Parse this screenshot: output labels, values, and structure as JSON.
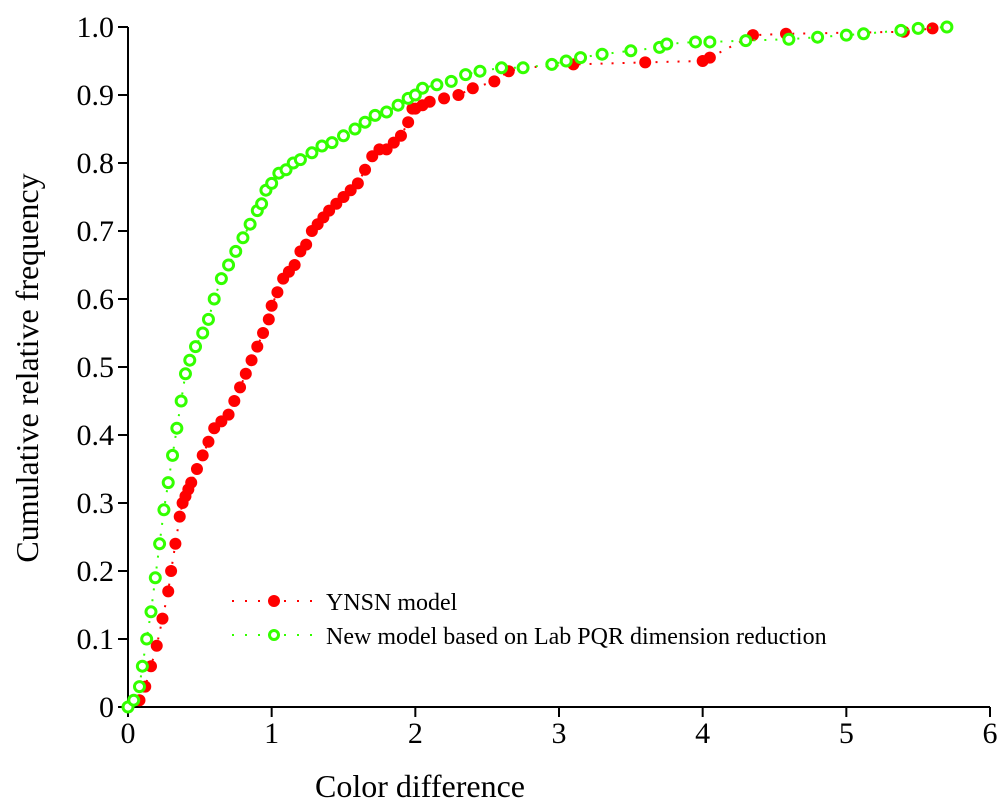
{
  "chart_data": {
    "type": "scatter",
    "title": "",
    "xlabel": "Color difference",
    "ylabel": "Cumulative relative frequency",
    "xlim": [
      0,
      6
    ],
    "ylim": [
      0,
      1.0
    ],
    "xticks": [
      "0",
      "1",
      "2",
      "3",
      "4",
      "5",
      "6"
    ],
    "yticks": [
      "0",
      "0.1",
      "0.2",
      "0.3",
      "0.4",
      "0.5",
      "0.6",
      "0.7",
      "0.8",
      "0.9",
      "1.0"
    ],
    "grid": false,
    "legend_position": "bottom-center",
    "series": [
      {
        "name": "YNSN model",
        "color": "#ff0000",
        "marker": "filled-circle",
        "line": "dotted",
        "x": [
          0.0,
          0.08,
          0.12,
          0.16,
          0.2,
          0.24,
          0.28,
          0.3,
          0.33,
          0.36,
          0.38,
          0.4,
          0.42,
          0.44,
          0.48,
          0.52,
          0.56,
          0.6,
          0.65,
          0.7,
          0.74,
          0.78,
          0.82,
          0.86,
          0.9,
          0.94,
          0.98,
          1.0,
          1.04,
          1.08,
          1.12,
          1.16,
          1.2,
          1.24,
          1.28,
          1.32,
          1.36,
          1.4,
          1.45,
          1.5,
          1.55,
          1.6,
          1.65,
          1.7,
          1.75,
          1.8,
          1.85,
          1.9,
          1.95,
          1.98,
          2.0,
          2.05,
          2.1,
          2.2,
          2.3,
          2.4,
          2.55,
          2.65,
          2.75,
          3.1,
          3.6,
          4.0,
          4.05,
          4.35,
          4.58,
          5.4,
          5.6
        ],
        "y": [
          0.0,
          0.01,
          0.03,
          0.06,
          0.09,
          0.13,
          0.17,
          0.2,
          0.24,
          0.28,
          0.3,
          0.31,
          0.32,
          0.33,
          0.35,
          0.37,
          0.39,
          0.41,
          0.42,
          0.43,
          0.45,
          0.47,
          0.49,
          0.51,
          0.53,
          0.55,
          0.57,
          0.59,
          0.61,
          0.63,
          0.64,
          0.65,
          0.67,
          0.68,
          0.7,
          0.71,
          0.72,
          0.73,
          0.74,
          0.75,
          0.76,
          0.77,
          0.79,
          0.81,
          0.82,
          0.82,
          0.83,
          0.84,
          0.86,
          0.88,
          0.88,
          0.885,
          0.89,
          0.895,
          0.9,
          0.91,
          0.92,
          0.935,
          0.94,
          0.945,
          0.948,
          0.95,
          0.955,
          0.988,
          0.99,
          0.993,
          0.998
        ]
      },
      {
        "name": "New model based on Lab PQR dimension reduction",
        "color": "#33ff00",
        "marker": "open-circle",
        "line": "dotted",
        "x": [
          0.0,
          0.04,
          0.08,
          0.1,
          0.13,
          0.16,
          0.19,
          0.22,
          0.25,
          0.28,
          0.31,
          0.34,
          0.37,
          0.4,
          0.43,
          0.47,
          0.52,
          0.56,
          0.6,
          0.65,
          0.7,
          0.75,
          0.8,
          0.85,
          0.9,
          0.93,
          0.96,
          1.0,
          1.05,
          1.1,
          1.15,
          1.2,
          1.28,
          1.35,
          1.42,
          1.5,
          1.58,
          1.65,
          1.72,
          1.8,
          1.88,
          1.95,
          2.0,
          2.05,
          2.15,
          2.25,
          2.35,
          2.45,
          2.6,
          2.75,
          2.95,
          3.05,
          3.15,
          3.3,
          3.5,
          3.7,
          3.75,
          3.95,
          4.05,
          4.3,
          4.6,
          4.8,
          5.0,
          5.12,
          5.38,
          5.5,
          5.7
        ],
        "y": [
          0.0,
          0.01,
          0.03,
          0.06,
          0.1,
          0.14,
          0.19,
          0.24,
          0.29,
          0.33,
          0.37,
          0.41,
          0.45,
          0.49,
          0.51,
          0.53,
          0.55,
          0.57,
          0.6,
          0.63,
          0.65,
          0.67,
          0.69,
          0.71,
          0.73,
          0.74,
          0.76,
          0.77,
          0.785,
          0.79,
          0.8,
          0.805,
          0.815,
          0.825,
          0.83,
          0.84,
          0.85,
          0.86,
          0.87,
          0.875,
          0.885,
          0.895,
          0.9,
          0.91,
          0.915,
          0.92,
          0.93,
          0.935,
          0.94,
          0.94,
          0.945,
          0.95,
          0.955,
          0.96,
          0.965,
          0.97,
          0.975,
          0.978,
          0.978,
          0.98,
          0.982,
          0.985,
          0.988,
          0.99,
          0.995,
          0.998,
          1.0
        ]
      }
    ]
  }
}
